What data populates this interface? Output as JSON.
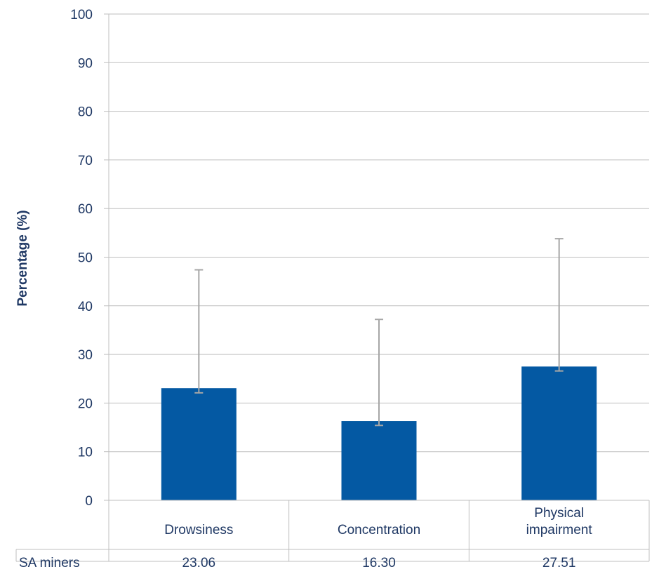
{
  "chart_data": {
    "type": "bar",
    "title": "",
    "xlabel": "",
    "ylabel": "Percentage (%)",
    "ylim": [
      0,
      100
    ],
    "yticks": [
      0,
      10,
      20,
      30,
      40,
      50,
      60,
      70,
      80,
      90,
      100
    ],
    "grid": true,
    "categories": [
      [
        "Drowsiness"
      ],
      [
        "Concentration"
      ],
      [
        "Physical",
        "impairment"
      ]
    ],
    "series": [
      {
        "name": "SA miners",
        "values": [
          23.06,
          16.3,
          27.51
        ],
        "labels": [
          "23.06",
          "16.30",
          "27.51"
        ],
        "error_upper": [
          47.4,
          37.2,
          53.8
        ],
        "error_lower": [
          22.1,
          15.4,
          26.6
        ],
        "color": "#0459a3"
      }
    ],
    "data_table": true,
    "colors": {
      "bar": "#0459a3",
      "grid": "#bfbfbf",
      "error_bar": "#a6a6a6",
      "text": "#1f3864"
    }
  }
}
